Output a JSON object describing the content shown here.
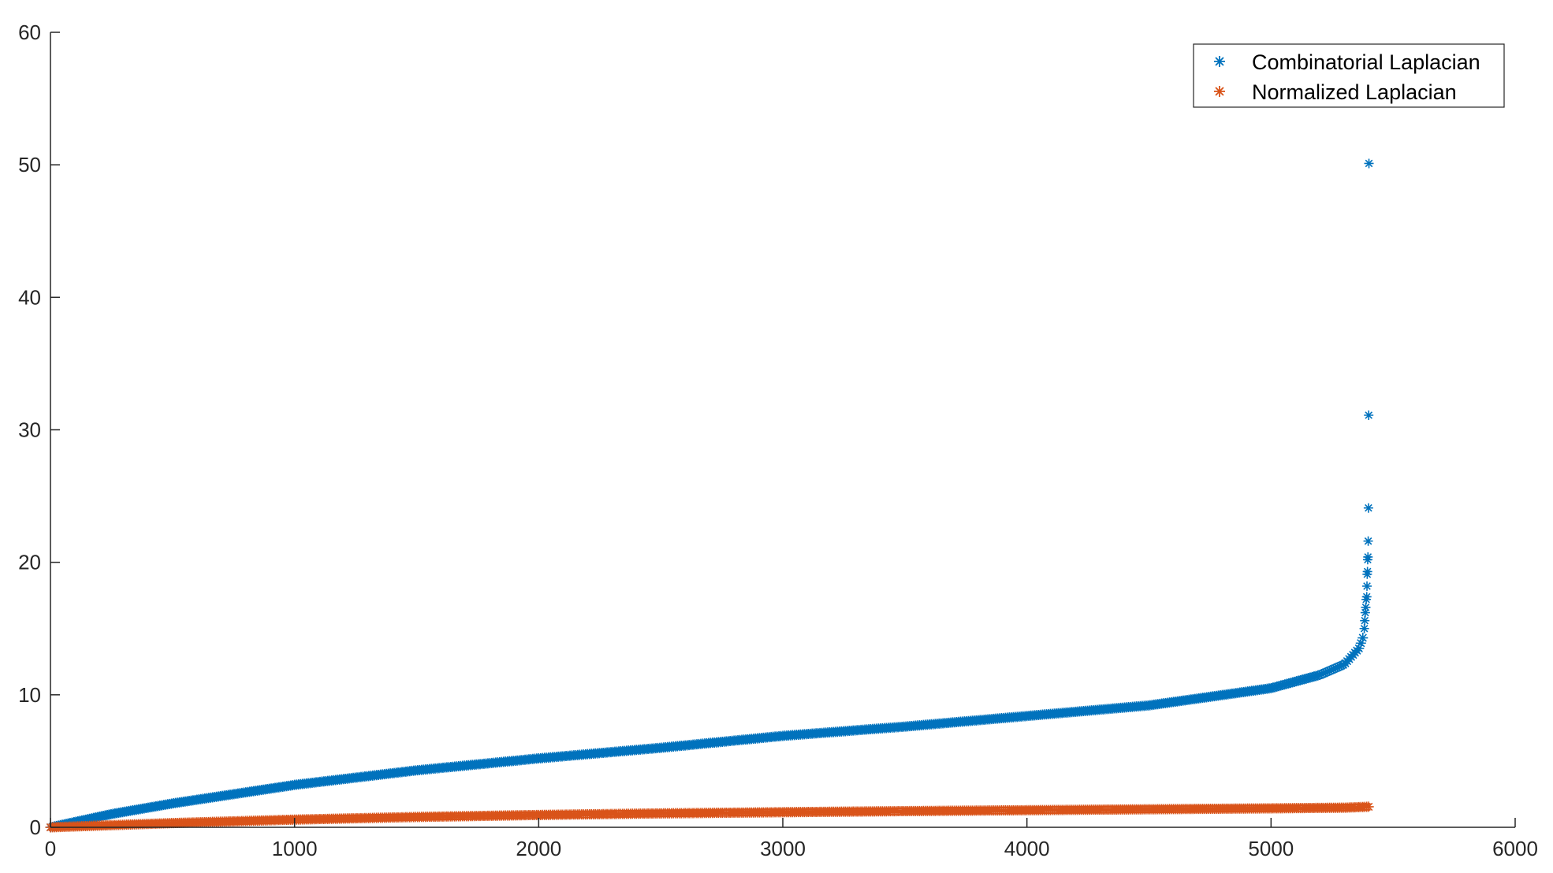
{
  "chart_data": {
    "type": "scatter",
    "marker": "asterisk",
    "title": "",
    "xlabel": "",
    "ylabel": "",
    "xlim": [
      0,
      6000
    ],
    "ylim": [
      0,
      60
    ],
    "xticks": [
      "0",
      "1000",
      "2000",
      "3000",
      "4000",
      "5000",
      "6000"
    ],
    "yticks": [
      "0",
      "10",
      "20",
      "30",
      "40",
      "50",
      "60"
    ],
    "grid": false,
    "legend_position": "top-right",
    "point_count": 5400,
    "series": [
      {
        "name": "Combinatorial Laplacian",
        "color": "#0072BD",
        "curve": [
          [
            0,
            0
          ],
          [
            250,
            1
          ],
          [
            500,
            1.8
          ],
          [
            1000,
            3.2
          ],
          [
            1500,
            4.3
          ],
          [
            2000,
            5.2
          ],
          [
            2500,
            6.0
          ],
          [
            3000,
            6.9
          ],
          [
            3500,
            7.6
          ],
          [
            4000,
            8.4
          ],
          [
            4500,
            9.2
          ],
          [
            5000,
            10.5
          ],
          [
            5200,
            11.5
          ],
          [
            5300,
            12.3
          ],
          [
            5360,
            13.5
          ],
          [
            5380,
            14.5
          ]
        ],
        "outliers": [
          [
            5382,
            15.0
          ],
          [
            5384,
            15.6
          ],
          [
            5386,
            16.2
          ],
          [
            5388,
            16.6
          ],
          [
            5390,
            17.2
          ],
          [
            5392,
            17.4
          ],
          [
            5393,
            18.2
          ],
          [
            5394,
            19.1
          ],
          [
            5395,
            19.3
          ],
          [
            5396,
            20.2
          ],
          [
            5397,
            20.4
          ],
          [
            5398,
            21.6
          ],
          [
            5399,
            24.1
          ],
          [
            5400,
            31.1
          ],
          [
            5401,
            50.1
          ]
        ]
      },
      {
        "name": "Normalized Laplacian",
        "color": "#D95319",
        "curve": [
          [
            0,
            0
          ],
          [
            500,
            0.32
          ],
          [
            1000,
            0.58
          ],
          [
            1500,
            0.78
          ],
          [
            2000,
            0.93
          ],
          [
            2500,
            1.05
          ],
          [
            3000,
            1.14
          ],
          [
            3500,
            1.22
          ],
          [
            4000,
            1.29
          ],
          [
            4500,
            1.36
          ],
          [
            5000,
            1.43
          ],
          [
            5300,
            1.48
          ],
          [
            5400,
            1.55
          ]
        ]
      }
    ]
  }
}
